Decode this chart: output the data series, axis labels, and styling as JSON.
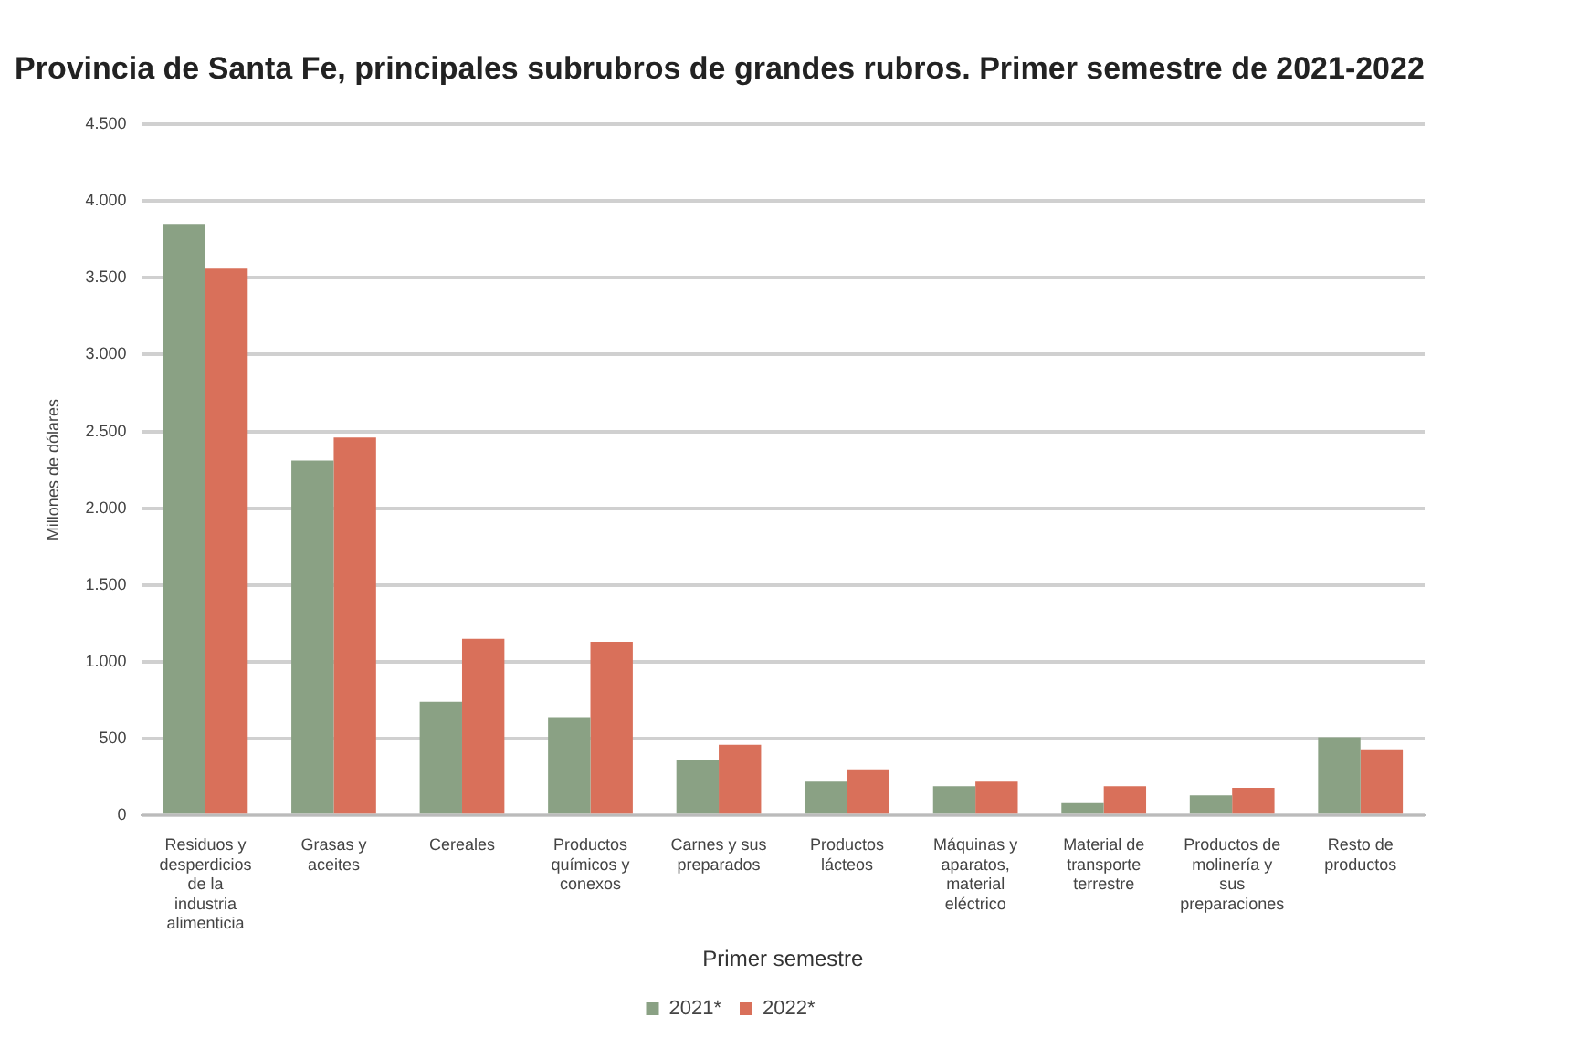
{
  "chart_data": {
    "type": "bar",
    "title": "Provincia de Santa Fe, principales subrubros de grandes rubros. Primer semestre de 2021-2022",
    "xlabel": "Primer semestre",
    "ylabel": "Millones de dólares",
    "categories": [
      "Residuos y desperdicios de la industria alimenticia",
      "Grasas y aceites",
      "Cereales",
      "Productos químicos y conexos",
      "Carnes y sus preparados",
      "Productos lácteos",
      "Máquinas y aparatos, material eléctrico",
      "Material de transporte terrestre",
      "Productos de molinería y sus preparaciones",
      "Resto de productos"
    ],
    "series": [
      {
        "name": "2021*",
        "color": "#8aa184",
        "values": [
          3850,
          2310,
          740,
          640,
          360,
          220,
          190,
          80,
          130,
          510
        ]
      },
      {
        "name": "2022*",
        "color": "#d9705a",
        "values": [
          3560,
          2460,
          1150,
          1130,
          460,
          300,
          220,
          190,
          180,
          430
        ]
      }
    ],
    "ylim": [
      0,
      4500
    ],
    "yticks": [
      {
        "value": 0,
        "label": "0"
      },
      {
        "value": 500,
        "label": "500"
      },
      {
        "value": 1000,
        "label": "1.000"
      },
      {
        "value": 1500,
        "label": "1.500"
      },
      {
        "value": 2000,
        "label": "2.000"
      },
      {
        "value": 2500,
        "label": "2.500"
      },
      {
        "value": 3000,
        "label": "3.000"
      },
      {
        "value": 3500,
        "label": "3.500"
      },
      {
        "value": 4000,
        "label": "4.000"
      },
      {
        "value": 4500,
        "label": "4.500"
      }
    ],
    "grid": "y",
    "legend": "bottom"
  }
}
